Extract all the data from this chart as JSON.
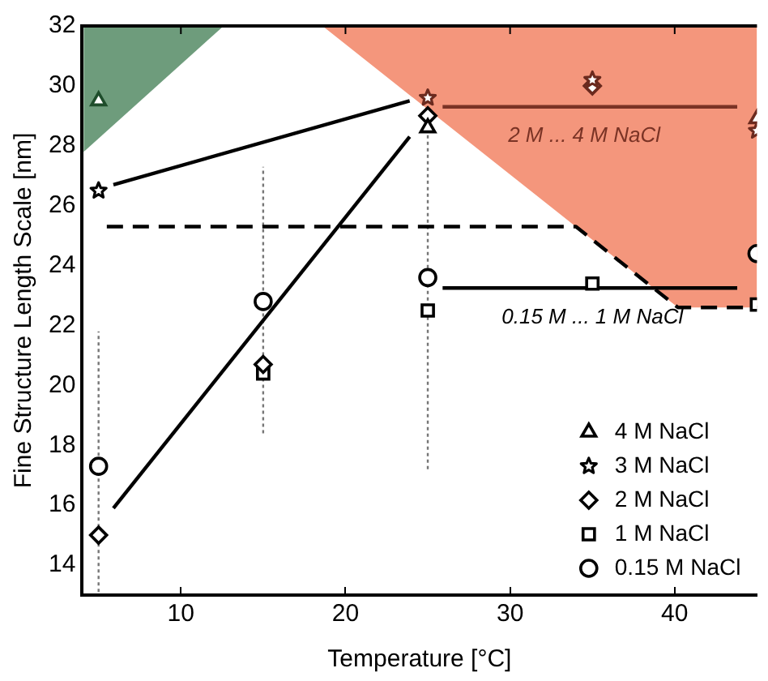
{
  "chart_data": {
    "type": "scatter",
    "xlabel": "Temperature [°C]",
    "ylabel": "Fine Structure Length Scale [nm]",
    "xlim": [
      4,
      45
    ],
    "ylim": [
      13,
      32
    ],
    "xticks": [
      10,
      20,
      30,
      40
    ],
    "yticks": [
      14,
      16,
      18,
      20,
      22,
      24,
      26,
      28,
      30,
      32
    ],
    "grid": false,
    "legend": "bottom right",
    "series": [
      {
        "type": "area",
        "color": "#6e9c7c",
        "x": [
          4.1,
          12.6,
          4.1
        ],
        "values": [
          32,
          32,
          27.8
        ]
      },
      {
        "type": "area",
        "color": "#f4967c",
        "x": [
          18.6,
          45,
          45,
          40.2
        ],
        "values": [
          32,
          32,
          22.6,
          22.6
        ]
      },
      {
        "type": "line",
        "color": "#000000",
        "x": [
          5.5,
          34,
          40.2,
          45
        ],
        "values": [
          25.3,
          25.3,
          22.6,
          22.6
        ],
        "line_style": "dashed",
        "marker": "none"
      },
      {
        "type": "line",
        "color": "#000000",
        "x": [
          5.9,
          23.9
        ],
        "values": [
          15.9,
          28.3
        ],
        "marker": "none"
      },
      {
        "type": "line",
        "color": "#000000",
        "x": [
          5.9,
          23.9
        ],
        "values": [
          26.7,
          29.5
        ],
        "marker": "none"
      },
      {
        "type": "line",
        "color": "#7a3325",
        "x": [
          25.9,
          43.8
        ],
        "values": [
          29.3,
          29.3
        ],
        "marker": "none"
      },
      {
        "type": "line",
        "color": "#000000",
        "x": [
          25.9,
          43.8
        ],
        "values": [
          23.25,
          23.25
        ],
        "marker": "none"
      },
      {
        "name": "4 M NaCl",
        "marker": "triangle",
        "color": "#000000",
        "colors": [
          "#1e4d2b",
          "#000000",
          "#6b2a1e"
        ],
        "x": [
          5,
          25,
          45
        ],
        "values": [
          29.5,
          28.6,
          28.9
        ]
      },
      {
        "name": "3 M NaCl",
        "marker": "star",
        "color": "#000000",
        "colors": [
          "#000000",
          "#6b2a1e",
          "#6b2a1e",
          "#6b2a1e"
        ],
        "x": [
          5,
          25,
          35,
          45
        ],
        "values": [
          26.5,
          29.6,
          30.2,
          28.5
        ]
      },
      {
        "name": "2 M NaCl",
        "marker": "diamond",
        "color": "#000000",
        "colors": [
          "#000000",
          "#000000",
          "#000000",
          "#6b2a1e"
        ],
        "x": [
          5,
          15,
          25,
          35
        ],
        "values": [
          15.0,
          20.7,
          29.0,
          30.0
        ]
      },
      {
        "name": "1 M NaCl",
        "marker": "square",
        "color": "#000000",
        "x": [
          15,
          25,
          35,
          45
        ],
        "values": [
          20.4,
          22.5,
          23.4,
          22.7
        ]
      },
      {
        "name": "0.15 M NaCl",
        "marker": "circle",
        "color": "#000000",
        "x": [
          5,
          15,
          25,
          45
        ],
        "values": [
          17.3,
          22.8,
          23.6,
          24.4
        ],
        "errors": [
          [
            13.1,
            21.8
          ],
          [
            18.4,
            27.3
          ],
          [
            17.2,
            29.8
          ],
          null
        ]
      }
    ],
    "annotations": [
      {
        "text": "2 M ... 4 M NaCl",
        "x": 34.5,
        "y": 29.3
      },
      {
        "text": "0.15 M ... 1 M NaCl",
        "x": 35,
        "y": 23.25
      }
    ]
  }
}
